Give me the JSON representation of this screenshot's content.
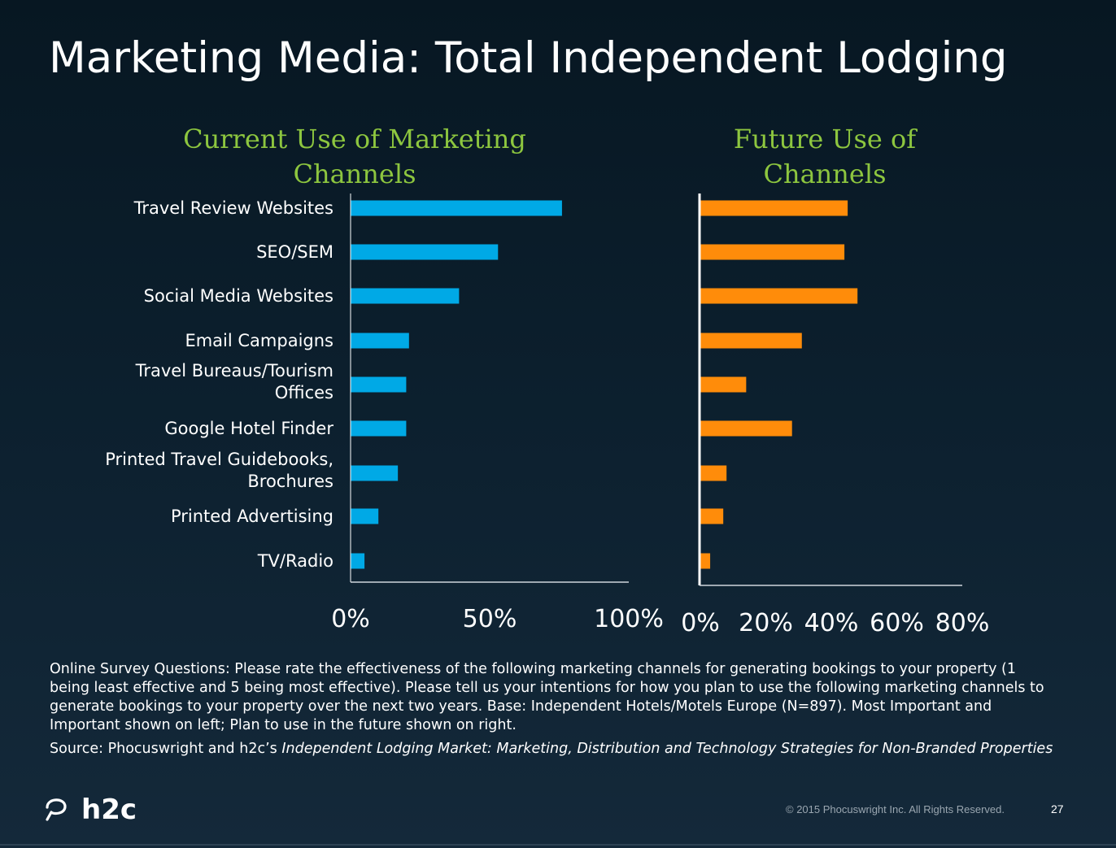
{
  "slide": {
    "title": "Marketing Media: Total Independent Lodging",
    "footnote": "Online Survey Questions: Please rate the effectiveness of the following marketing channels for generating bookings to your property (1 being least effective and 5 being most effective). Please tell us your intentions for how you plan to use the following marketing channels to generate bookings to your property over the next two years. Base: Independent Hotels/Motels Europe (N=897). Most Important and Important shown on left; Plan to use in the future shown on right.",
    "source_prefix": "Source: Phocuswright and h2c’s ",
    "source_title": "Independent Lodging Market: Marketing, Distribution and Technology Strategies for Non-Branded Properties",
    "copyright": "© 2015 Phocuswright Inc. All Rights Reserved.",
    "page_number": "27",
    "logo_text": "h2c",
    "colors": {
      "current_bar": "#00a9e6",
      "future_bar": "#ff8c0a",
      "chart_title": "#8dc63f",
      "background": "#0d2130"
    }
  },
  "chart_data": [
    {
      "type": "bar",
      "orientation": "horizontal",
      "title_lines": [
        "Current Use of Marketing",
        "Channels"
      ],
      "categories": [
        [
          "Travel Review Websites"
        ],
        [
          "SEO/SEM"
        ],
        [
          "Social Media Websites"
        ],
        [
          "Email Campaigns"
        ],
        [
          "Travel Bureaus/Tourism",
          "Offices"
        ],
        [
          "Google Hotel Finder"
        ],
        [
          "Printed Travel Guidebooks,",
          "Brochures"
        ],
        [
          "Printed Advertising"
        ],
        [
          "TV/Radio"
        ]
      ],
      "values": [
        76,
        53,
        39,
        21,
        20,
        20,
        17,
        10,
        5
      ],
      "xlim": [
        0,
        100
      ],
      "ticks": [
        0,
        50,
        100
      ],
      "tick_labels": [
        "0%",
        "50%",
        "100%"
      ],
      "color": "#00a9e6",
      "grid": false,
      "legend": "none"
    },
    {
      "type": "bar",
      "orientation": "horizontal",
      "title_lines": [
        "Future Use of",
        "Channels"
      ],
      "categories": [
        [
          "Travel Review Websites"
        ],
        [
          "SEO/SEM"
        ],
        [
          "Social Media Websites"
        ],
        [
          "Email Campaigns"
        ],
        [
          "Travel Bureaus/Tourism",
          "Offices"
        ],
        [
          "Google Hotel Finder"
        ],
        [
          "Printed Travel Guidebooks,",
          "Brochures"
        ],
        [
          "Printed Advertising"
        ],
        [
          "TV/Radio"
        ]
      ],
      "values": [
        45,
        44,
        48,
        31,
        14,
        28,
        8,
        7,
        3
      ],
      "xlim": [
        0,
        80
      ],
      "ticks": [
        0,
        20,
        40,
        60,
        80
      ],
      "tick_labels": [
        "0%",
        "20%",
        "40%",
        "60%",
        "80%"
      ],
      "color": "#ff8c0a",
      "grid": false,
      "legend": "none"
    }
  ]
}
